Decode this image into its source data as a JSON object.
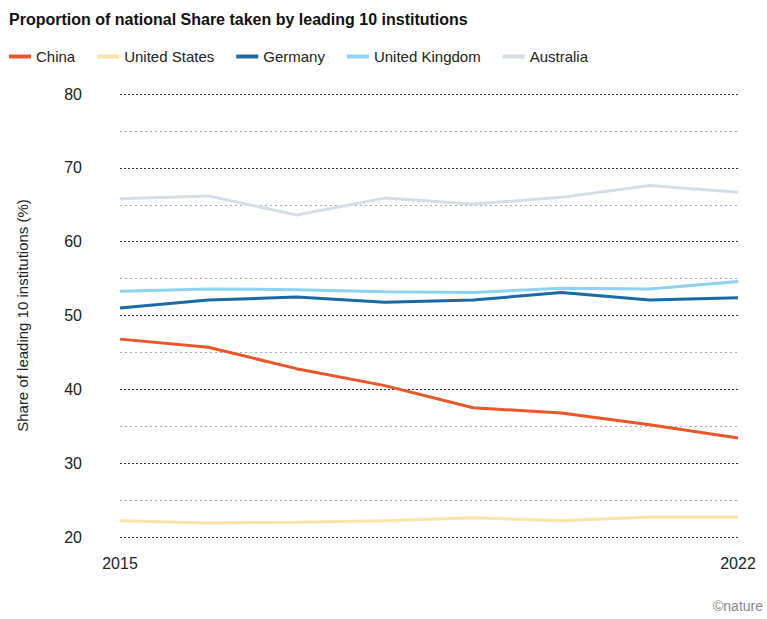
{
  "chart_data": {
    "type": "line",
    "title": "Proportion of national Share taken by leading 10 institutions",
    "y_label": "Share of leading 10 institutions (%)",
    "categories": [
      "2015",
      null,
      null,
      null,
      null,
      null,
      null,
      "2022"
    ],
    "series": [
      {
        "name": "China",
        "color": "#e8562a",
        "values": [
          46.8,
          45.7,
          42.8,
          40.5,
          37.5,
          36.8,
          35.2,
          33.4
        ]
      },
      {
        "name": "United States",
        "color": "#fde3a7",
        "values": [
          22.2,
          21.9,
          22.0,
          22.2,
          22.6,
          22.2,
          22.7,
          22.7
        ]
      },
      {
        "name": "Germany",
        "color": "#1a6aa8",
        "values": [
          51.0,
          52.1,
          52.5,
          51.8,
          52.1,
          53.1,
          52.1,
          52.4
        ]
      },
      {
        "name": "United Kingdom",
        "color": "#8fd3f0",
        "values": [
          53.3,
          53.6,
          53.5,
          53.2,
          53.1,
          53.7,
          53.6,
          54.6
        ]
      },
      {
        "name": "Australia",
        "color": "#d5dde5",
        "values": [
          65.8,
          66.2,
          63.6,
          65.9,
          65.1,
          66.0,
          67.6,
          66.7
        ]
      }
    ],
    "ylim": [
      20,
      80
    ],
    "yticks": [
      20,
      30,
      40,
      50,
      60,
      70,
      80
    ],
    "grid": true,
    "legend": "top",
    "credit": "©nature"
  }
}
